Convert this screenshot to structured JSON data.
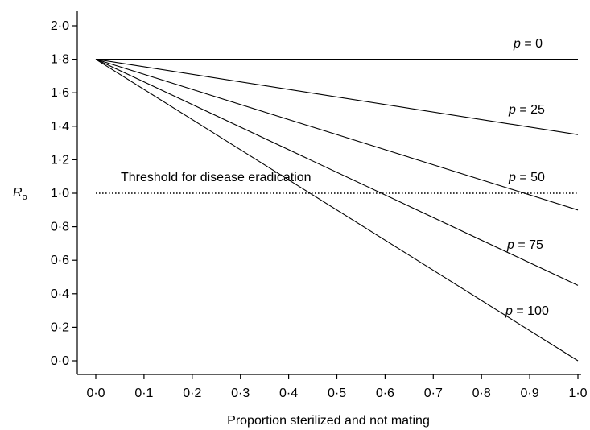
{
  "chart_data": {
    "type": "line",
    "xlabel": "Proportion sterilized and not mating",
    "ylabel": "R",
    "ylabel_subscript": "o",
    "xlim": [
      0.0,
      1.0
    ],
    "ylim": [
      0.0,
      2.0
    ],
    "xticks": [
      0.0,
      0.1,
      0.2,
      0.3,
      0.4,
      0.5,
      0.6,
      0.7,
      0.8,
      0.9,
      1.0
    ],
    "xtick_labels": [
      "0·0",
      "0·1",
      "0·2",
      "0·3",
      "0·4",
      "0·5",
      "0·6",
      "0·7",
      "0·8",
      "0·9",
      "1·0"
    ],
    "yticks": [
      0.0,
      0.2,
      0.4,
      0.6,
      0.8,
      1.0,
      1.2,
      1.4,
      1.6,
      1.8,
      2.0
    ],
    "ytick_labels": [
      "0·0",
      "0·2",
      "0·4",
      "0·6",
      "0·8",
      "1·0",
      "1·2",
      "1·4",
      "1·6",
      "1·8",
      "2·0"
    ],
    "grid": false,
    "series": [
      {
        "name": "p = 0",
        "label_var": "p",
        "label_value": "= 0",
        "x": [
          0.0,
          1.0
        ],
        "y": [
          1.8,
          1.8
        ]
      },
      {
        "name": "p = 25",
        "label_var": "p",
        "label_value": "= 25",
        "x": [
          0.0,
          1.0
        ],
        "y": [
          1.8,
          1.35
        ]
      },
      {
        "name": "p = 50",
        "label_var": "p",
        "label_value": "= 50",
        "x": [
          0.0,
          1.0
        ],
        "y": [
          1.8,
          0.9
        ]
      },
      {
        "name": "p = 75",
        "label_var": "p",
        "label_value": "= 75",
        "x": [
          0.0,
          1.0
        ],
        "y": [
          1.8,
          0.45
        ]
      },
      {
        "name": "p = 100",
        "label_var": "p",
        "label_value": "= 100",
        "x": [
          0.0,
          1.0
        ],
        "y": [
          1.8,
          0.0
        ]
      }
    ],
    "threshold": {
      "label": "Threshold for disease eradication",
      "y": 1.0,
      "style": "dotted"
    }
  }
}
